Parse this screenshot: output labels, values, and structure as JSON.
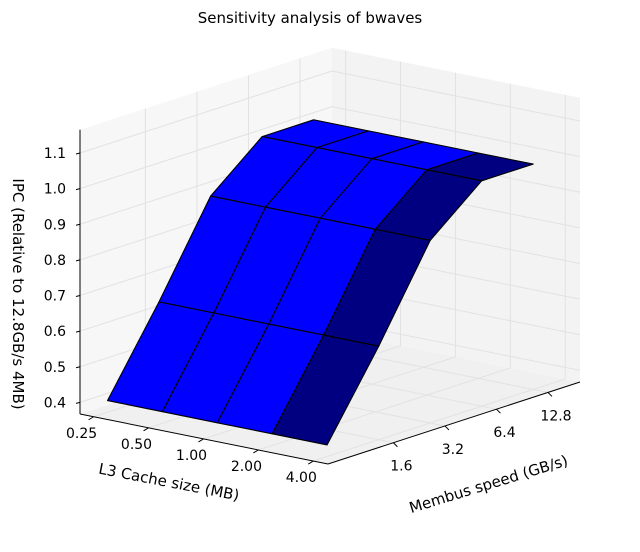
{
  "chart_data": {
    "type": "surface3d",
    "title": "Sensitivity analysis of bwaves",
    "xlabel": "Membus speed (GB/s)",
    "ylabel": "L3 Cache size (MB)",
    "zlabel": "IPC (Relative to 12.8GB/s 4MB)",
    "x": {
      "name": "membus_speed_gbps",
      "values": [
        0.8,
        1.6,
        3.2,
        6.4,
        12.8
      ],
      "tick_labels": [
        "1.6",
        "3.2",
        "6.4",
        "12.8"
      ]
    },
    "y": {
      "name": "l3_cache_mb",
      "values": [
        4.0,
        2.0,
        1.0,
        0.5,
        0.25
      ],
      "tick_labels": [
        "4.00",
        "2.00",
        "1.00",
        "0.50",
        "0.25"
      ]
    },
    "zlim": [
      0.4,
      1.1
    ],
    "z_ticks": [
      "0.4",
      "0.5",
      "0.6",
      "0.7",
      "0.8",
      "0.9",
      "1.0",
      "1.1"
    ],
    "z_grid": [
      [
        0.4,
        0.63,
        0.88,
        1.0,
        1.0
      ],
      [
        0.4,
        0.63,
        0.88,
        1.0,
        1.0
      ],
      [
        0.4,
        0.63,
        0.88,
        1.0,
        1.0
      ],
      [
        0.4,
        0.63,
        0.88,
        1.0,
        1.0
      ],
      [
        0.4,
        0.63,
        0.88,
        1.0,
        1.0
      ]
    ],
    "colors": {
      "surface_dark": "#000080",
      "surface_light": "#0000ff",
      "edge": "#000000"
    },
    "grid": true
  }
}
